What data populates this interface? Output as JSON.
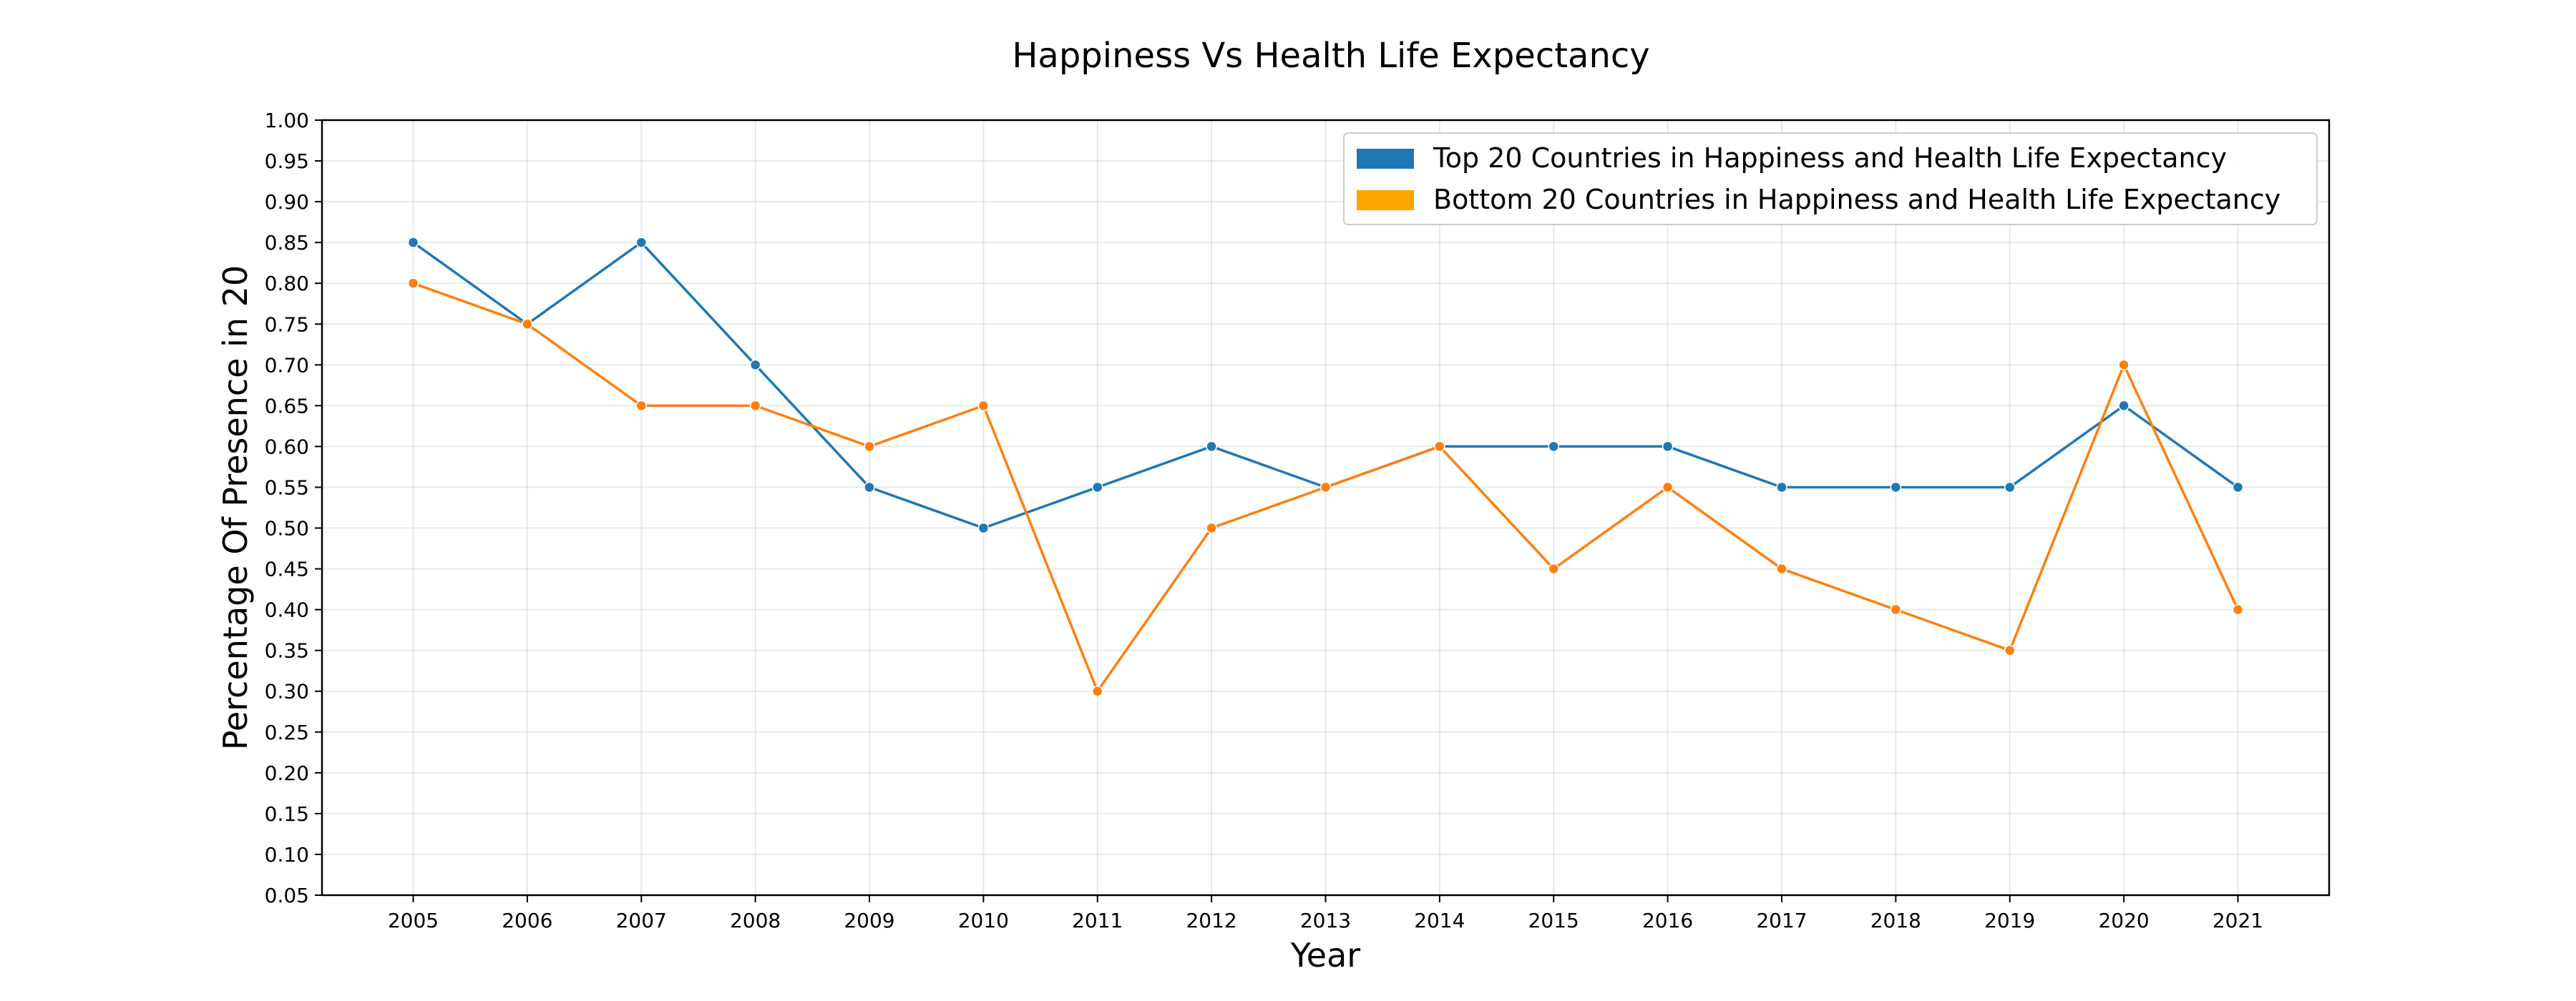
{
  "chart_data": {
    "type": "line",
    "title": "Happiness Vs Health Life Expectancy",
    "xlabel": "Year",
    "ylabel": "Percentage Of Presence in 20",
    "x": [
      2005,
      2006,
      2007,
      2008,
      2009,
      2010,
      2011,
      2012,
      2013,
      2014,
      2015,
      2016,
      2017,
      2018,
      2019,
      2020,
      2021
    ],
    "xticks": [
      "2005",
      "2006",
      "2007",
      "2008",
      "2009",
      "2010",
      "2011",
      "2012",
      "2013",
      "2014",
      "2015",
      "2016",
      "2017",
      "2018",
      "2019",
      "2020",
      "2021"
    ],
    "ylim": [
      0.05,
      1.0
    ],
    "yticks": [
      "0.05",
      "0.10",
      "0.15",
      "0.20",
      "0.25",
      "0.30",
      "0.35",
      "0.40",
      "0.45",
      "0.50",
      "0.55",
      "0.60",
      "0.65",
      "0.70",
      "0.75",
      "0.80",
      "0.85",
      "0.90",
      "0.95",
      "1.00"
    ],
    "grid": true,
    "legend_position": "top-right",
    "series": [
      {
        "name": "Top 20 Countries in Happiness and Health Life Expectancy",
        "color": "#1f77b4",
        "values": [
          0.85,
          0.75,
          0.85,
          0.7,
          0.55,
          0.5,
          0.55,
          0.6,
          0.55,
          0.6,
          0.6,
          0.6,
          0.55,
          0.55,
          0.55,
          0.65,
          0.55
        ]
      },
      {
        "name": "Bottom 20 Countries in Happiness and Health Life Expectancy",
        "color": "#ff7f0e",
        "legend_color": "#ffa500",
        "values": [
          0.8,
          0.75,
          0.65,
          0.65,
          0.6,
          0.65,
          0.3,
          0.5,
          0.55,
          0.6,
          0.45,
          0.55,
          0.45,
          0.4,
          0.35,
          0.7,
          0.4
        ]
      }
    ]
  }
}
